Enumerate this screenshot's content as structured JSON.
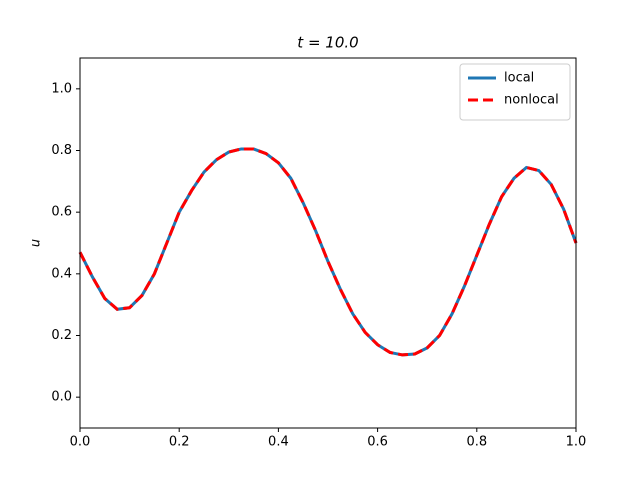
{
  "chart_data": {
    "type": "line",
    "title": "t = 10.0",
    "ylabel": "u",
    "x": [
      0,
      0.025,
      0.05,
      0.075,
      0.1,
      0.125,
      0.15,
      0.175,
      0.2,
      0.225,
      0.25,
      0.275,
      0.3,
      0.325,
      0.35,
      0.375,
      0.4,
      0.425,
      0.45,
      0.475,
      0.5,
      0.525,
      0.55,
      0.575,
      0.6,
      0.625,
      0.65,
      0.675,
      0.7,
      0.725,
      0.75,
      0.775,
      0.8,
      0.825,
      0.85,
      0.875,
      0.9,
      0.925,
      0.95,
      0.975,
      1.0
    ],
    "series": [
      {
        "name": "local",
        "color": "#1f77b4",
        "dash": false,
        "values": [
          0.47,
          0.39,
          0.32,
          0.285,
          0.29,
          0.33,
          0.4,
          0.5,
          0.6,
          0.67,
          0.73,
          0.77,
          0.795,
          0.805,
          0.805,
          0.79,
          0.76,
          0.71,
          0.63,
          0.54,
          0.44,
          0.35,
          0.27,
          0.21,
          0.17,
          0.145,
          0.137,
          0.14,
          0.16,
          0.2,
          0.27,
          0.36,
          0.46,
          0.56,
          0.65,
          0.71,
          0.745,
          0.735,
          0.69,
          0.61,
          0.5
        ]
      },
      {
        "name": "nonlocal",
        "color": "#ff0000",
        "dash": true,
        "values": [
          0.47,
          0.39,
          0.32,
          0.285,
          0.29,
          0.33,
          0.4,
          0.5,
          0.6,
          0.67,
          0.73,
          0.77,
          0.795,
          0.805,
          0.805,
          0.79,
          0.76,
          0.71,
          0.63,
          0.54,
          0.44,
          0.35,
          0.27,
          0.21,
          0.17,
          0.145,
          0.137,
          0.14,
          0.16,
          0.2,
          0.27,
          0.36,
          0.46,
          0.56,
          0.65,
          0.71,
          0.745,
          0.735,
          0.69,
          0.61,
          0.5
        ]
      }
    ],
    "xlim": [
      0,
      1
    ],
    "xticks": [
      {
        "value": 0,
        "label": "0.0"
      },
      {
        "value": 0.2,
        "label": "0.2"
      },
      {
        "value": 0.4,
        "label": "0.4"
      },
      {
        "value": 0.6,
        "label": "0.6"
      },
      {
        "value": 0.8,
        "label": "0.8"
      },
      {
        "value": 1,
        "label": "1.0"
      }
    ],
    "ylim": [
      -0.1,
      1.1
    ],
    "yticks": [
      {
        "value": 0,
        "label": "0.0"
      },
      {
        "value": 0.2,
        "label": "0.2"
      },
      {
        "value": 0.4,
        "label": "0.4"
      },
      {
        "value": 0.6,
        "label": "0.6"
      },
      {
        "value": 0.8,
        "label": "0.8"
      },
      {
        "value": 1,
        "label": "1.0"
      }
    ],
    "legend": "upper right",
    "grid": false
  }
}
